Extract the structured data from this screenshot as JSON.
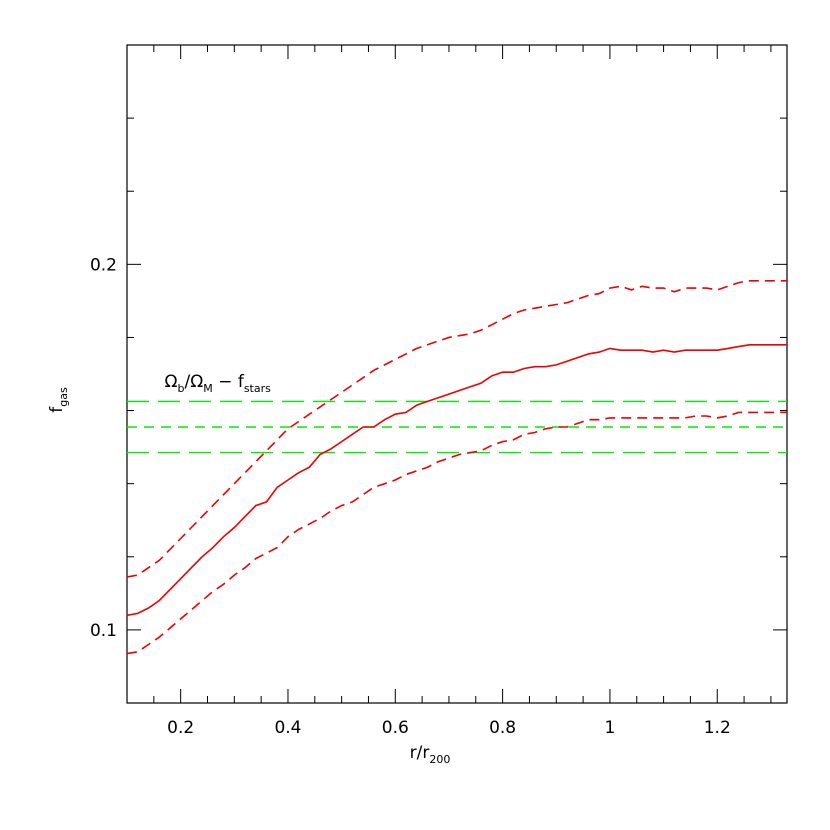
{
  "chart_data": {
    "type": "line",
    "xlabel": {
      "main": "r/r",
      "sub": "200"
    },
    "ylabel": {
      "main": "f",
      "sub": "gas"
    },
    "xlim": [
      0.1,
      1.33
    ],
    "ylim": [
      0.08,
      0.26
    ],
    "x_ticks": [
      0.2,
      0.4,
      0.6,
      0.8,
      1,
      1.2
    ],
    "x_tick_labels": [
      "0.2",
      "0.4",
      "0.6",
      "0.8",
      "1",
      "1.2"
    ],
    "y_ticks": [
      0.1,
      0.2
    ],
    "y_tick_labels": [
      "0.1",
      "0.2"
    ],
    "annotation": {
      "omega": "Ω",
      "b_sub": "b",
      "slash": "/",
      "m_sub": "M",
      "dash": " − f",
      "stars_sub": "stars",
      "x": 0.17,
      "y": 0.1665
    },
    "horizontal_lines": [
      {
        "y": 0.1625,
        "style": "long-dash",
        "color": "#00ee00"
      },
      {
        "y": 0.1555,
        "style": "short-dash",
        "color": "#00ee00"
      },
      {
        "y": 0.1485,
        "style": "long-dash",
        "color": "#00ee00"
      }
    ],
    "series": [
      {
        "style": "solid",
        "color": "#ee0000",
        "x": [
          0.1,
          0.12,
          0.14,
          0.16,
          0.18,
          0.2,
          0.22,
          0.24,
          0.26,
          0.28,
          0.3,
          0.32,
          0.34,
          0.36,
          0.38,
          0.4,
          0.42,
          0.44,
          0.46,
          0.48,
          0.5,
          0.52,
          0.54,
          0.56,
          0.58,
          0.6,
          0.62,
          0.64,
          0.66,
          0.68,
          0.7,
          0.72,
          0.74,
          0.76,
          0.78,
          0.8,
          0.82,
          0.84,
          0.86,
          0.88,
          0.9,
          0.92,
          0.94,
          0.96,
          0.98,
          1.0,
          1.02,
          1.04,
          1.06,
          1.08,
          1.1,
          1.12,
          1.14,
          1.16,
          1.18,
          1.2,
          1.22,
          1.24,
          1.26,
          1.28,
          1.3,
          1.33
        ],
        "y": [
          0.104,
          0.1045,
          0.106,
          0.108,
          0.111,
          0.114,
          0.117,
          0.12,
          0.1225,
          0.1255,
          0.128,
          0.131,
          0.134,
          0.135,
          0.139,
          0.141,
          0.143,
          0.1445,
          0.148,
          0.1495,
          0.1515,
          0.1535,
          0.1555,
          0.1555,
          0.1575,
          0.159,
          0.1595,
          0.1615,
          0.1625,
          0.1635,
          0.1645,
          0.1655,
          0.1665,
          0.1675,
          0.1695,
          0.1705,
          0.1705,
          0.1715,
          0.172,
          0.172,
          0.1725,
          0.1735,
          0.1745,
          0.1755,
          0.176,
          0.177,
          0.1765,
          0.1765,
          0.1765,
          0.176,
          0.1765,
          0.176,
          0.1765,
          0.1765,
          0.1765,
          0.1765,
          0.177,
          0.1775,
          0.178,
          0.178,
          0.178,
          0.178
        ]
      },
      {
        "style": "short-dash",
        "color": "#ee0000",
        "x": [
          0.1,
          0.12,
          0.14,
          0.16,
          0.18,
          0.2,
          0.22,
          0.24,
          0.26,
          0.28,
          0.3,
          0.32,
          0.34,
          0.36,
          0.38,
          0.4,
          0.42,
          0.44,
          0.46,
          0.48,
          0.5,
          0.52,
          0.54,
          0.56,
          0.58,
          0.6,
          0.62,
          0.64,
          0.66,
          0.68,
          0.7,
          0.72,
          0.74,
          0.76,
          0.78,
          0.8,
          0.82,
          0.84,
          0.86,
          0.88,
          0.9,
          0.92,
          0.94,
          0.96,
          0.98,
          1.0,
          1.02,
          1.04,
          1.06,
          1.08,
          1.1,
          1.12,
          1.14,
          1.16,
          1.18,
          1.2,
          1.22,
          1.24,
          1.26,
          1.28,
          1.3,
          1.33
        ],
        "y": [
          0.1145,
          0.115,
          0.117,
          0.119,
          0.122,
          0.125,
          0.128,
          0.131,
          0.134,
          0.137,
          0.14,
          0.143,
          0.146,
          0.149,
          0.152,
          0.155,
          0.157,
          0.159,
          0.161,
          0.163,
          0.165,
          0.167,
          0.169,
          0.171,
          0.1725,
          0.174,
          0.1755,
          0.177,
          0.178,
          0.179,
          0.18,
          0.1805,
          0.181,
          0.182,
          0.1835,
          0.185,
          0.1865,
          0.1875,
          0.188,
          0.1885,
          0.189,
          0.1895,
          0.1905,
          0.1915,
          0.192,
          0.1935,
          0.194,
          0.193,
          0.194,
          0.1935,
          0.1935,
          0.1925,
          0.1935,
          0.1935,
          0.1935,
          0.193,
          0.194,
          0.195,
          0.1955,
          0.1955,
          0.1955,
          0.1955
        ]
      },
      {
        "style": "short-dash",
        "color": "#ee0000",
        "x": [
          0.1,
          0.12,
          0.14,
          0.16,
          0.18,
          0.2,
          0.22,
          0.24,
          0.26,
          0.28,
          0.3,
          0.32,
          0.34,
          0.36,
          0.38,
          0.4,
          0.42,
          0.44,
          0.46,
          0.48,
          0.5,
          0.52,
          0.54,
          0.56,
          0.58,
          0.6,
          0.62,
          0.64,
          0.66,
          0.68,
          0.7,
          0.72,
          0.74,
          0.76,
          0.78,
          0.8,
          0.82,
          0.84,
          0.86,
          0.88,
          0.9,
          0.92,
          0.94,
          0.96,
          0.98,
          1.0,
          1.02,
          1.04,
          1.06,
          1.08,
          1.1,
          1.12,
          1.14,
          1.16,
          1.18,
          1.2,
          1.22,
          1.24,
          1.26,
          1.28,
          1.3,
          1.33
        ],
        "y": [
          0.0935,
          0.094,
          0.096,
          0.098,
          0.1005,
          0.103,
          0.1055,
          0.108,
          0.1105,
          0.1125,
          0.115,
          0.117,
          0.1195,
          0.121,
          0.1225,
          0.1255,
          0.1275,
          0.129,
          0.1305,
          0.1325,
          0.134,
          0.135,
          0.137,
          0.139,
          0.14,
          0.141,
          0.1425,
          0.1435,
          0.1445,
          0.146,
          0.147,
          0.148,
          0.1485,
          0.149,
          0.1505,
          0.1515,
          0.152,
          0.1535,
          0.154,
          0.155,
          0.1555,
          0.1555,
          0.1565,
          0.1575,
          0.1575,
          0.158,
          0.158,
          0.158,
          0.158,
          0.158,
          0.158,
          0.158,
          0.158,
          0.1585,
          0.1585,
          0.158,
          0.1585,
          0.1595,
          0.1595,
          0.1595,
          0.1595,
          0.1595
        ]
      }
    ]
  }
}
